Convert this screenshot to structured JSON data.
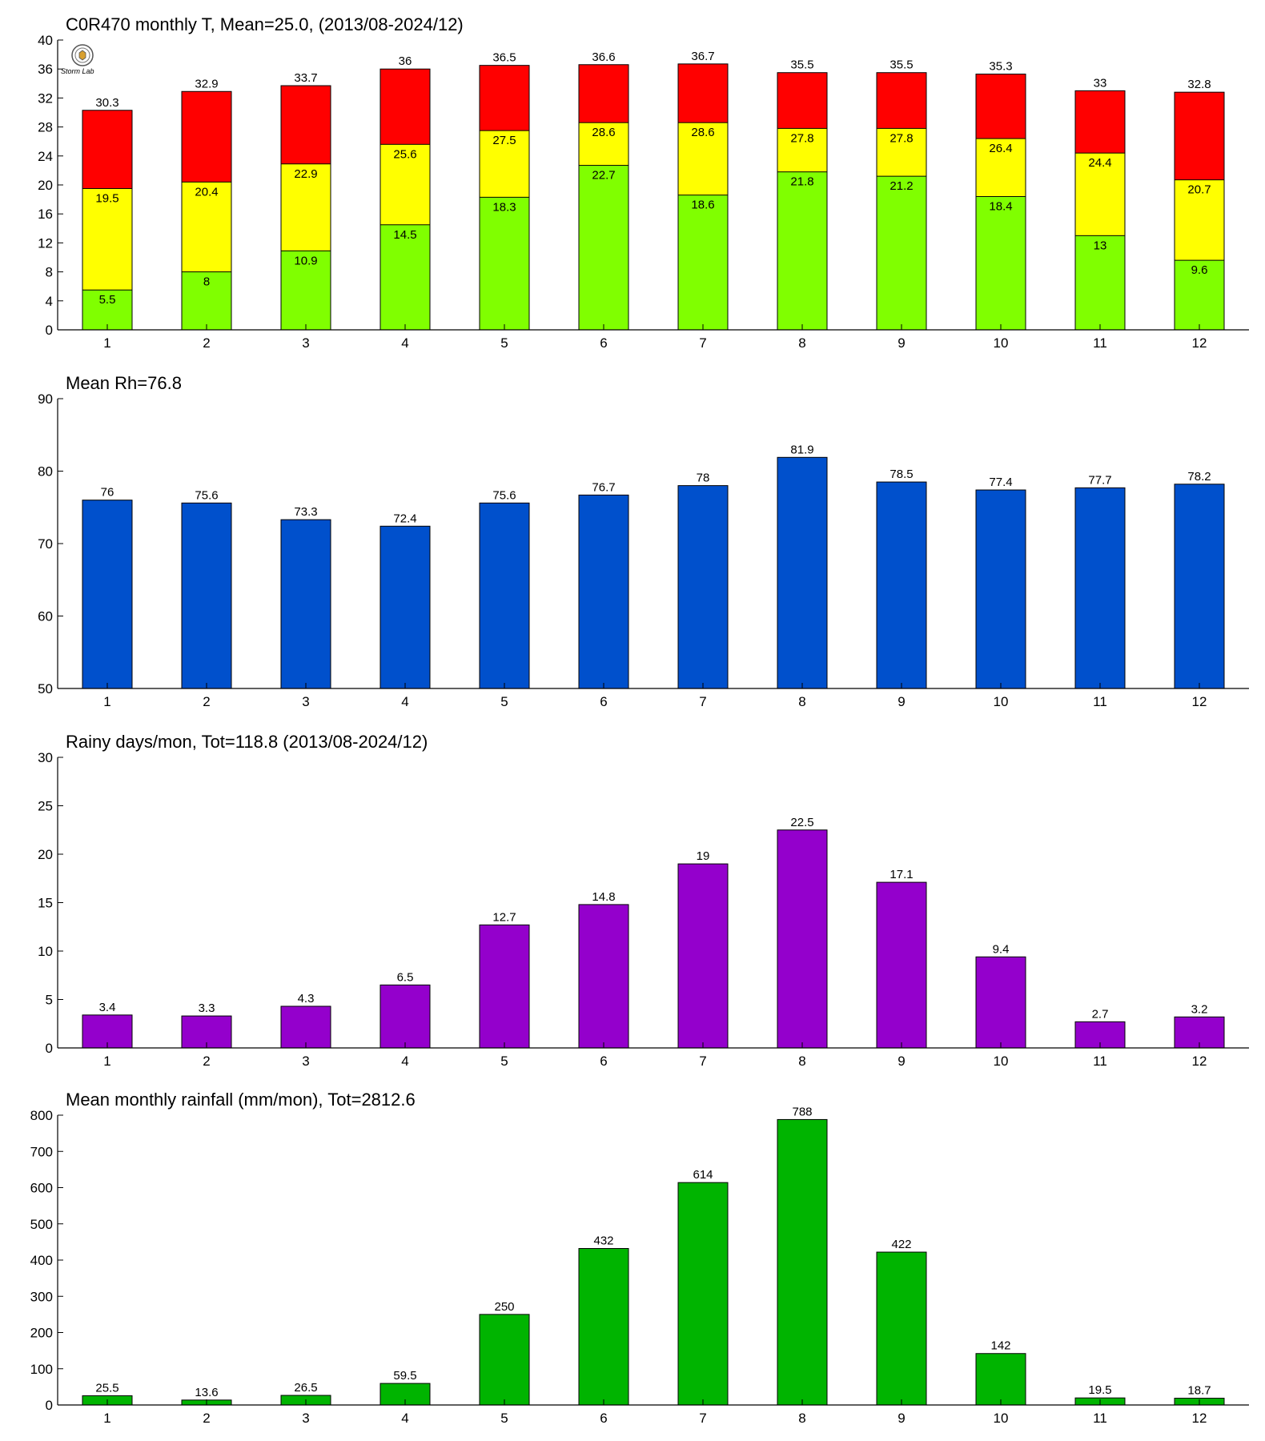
{
  "colors": {
    "t_min": "#80ff00",
    "t_mean": "#ffff00",
    "t_max": "#ff0000",
    "rh": "#0050cc",
    "rainy_days": "#9400cc",
    "rainfall": "#00b400"
  },
  "logo": {
    "icon": "station-seal-logo",
    "text": "Storm Lab"
  },
  "chart_data": [
    {
      "type": "bar",
      "stacked_overlay": true,
      "title": "C0R470 monthly T, Mean=25.0, (2013/08-2024/12)",
      "categories": [
        "1",
        "2",
        "3",
        "4",
        "5",
        "6",
        "7",
        "8",
        "9",
        "10",
        "11",
        "12"
      ],
      "series": [
        {
          "values": [
            30.3,
            32.9,
            33.7,
            36,
            36.5,
            36.6,
            36.7,
            35.5,
            35.5,
            35.3,
            33,
            32.8
          ]
        },
        {
          "values": [
            19.5,
            20.4,
            22.9,
            25.6,
            27.5,
            28.6,
            28.6,
            27.8,
            27.8,
            26.4,
            24.4,
            20.7
          ]
        },
        {
          "values": [
            5.5,
            8,
            10.9,
            14.5,
            18.3,
            22.7,
            18.6,
            21.8,
            21.2,
            18.4,
            13,
            9.6
          ]
        }
      ],
      "ylim": [
        0,
        40
      ],
      "yticks": [
        "0",
        "4",
        "8",
        "12",
        "16",
        "20",
        "24",
        "28",
        "32",
        "36",
        "40"
      ]
    },
    {
      "type": "bar",
      "title": "Mean Rh=76.8",
      "categories": [
        "1",
        "2",
        "3",
        "4",
        "5",
        "6",
        "7",
        "8",
        "9",
        "10",
        "11",
        "12"
      ],
      "values": [
        76,
        75.6,
        73.3,
        72.4,
        75.6,
        76.7,
        78,
        81.9,
        78.5,
        77.4,
        77.7,
        78.2
      ],
      "ylim": [
        50,
        90
      ],
      "yticks": [
        "50",
        "60",
        "70",
        "80",
        "90"
      ]
    },
    {
      "type": "bar",
      "title": "Rainy days/mon, Tot=118.8 (2013/08-2024/12)",
      "categories": [
        "1",
        "2",
        "3",
        "4",
        "5",
        "6",
        "7",
        "8",
        "9",
        "10",
        "11",
        "12"
      ],
      "values": [
        3.4,
        3.3,
        4.3,
        6.5,
        12.7,
        14.8,
        19,
        22.5,
        17.1,
        9.4,
        2.7,
        3.2
      ],
      "ylim": [
        0,
        30
      ],
      "yticks": [
        "0",
        "5",
        "10",
        "15",
        "20",
        "25",
        "30"
      ]
    },
    {
      "type": "bar",
      "title": "Mean monthly rainfall (mm/mon), Tot=2812.6",
      "categories": [
        "1",
        "2",
        "3",
        "4",
        "5",
        "6",
        "7",
        "8",
        "9",
        "10",
        "11",
        "12"
      ],
      "values": [
        25.5,
        13.6,
        26.5,
        59.5,
        250,
        432,
        614,
        788,
        422,
        142,
        19.5,
        18.7
      ],
      "ylim": [
        0,
        800
      ],
      "yticks": [
        "0",
        "100",
        "200",
        "300",
        "400",
        "500",
        "600",
        "700",
        "800"
      ]
    }
  ]
}
